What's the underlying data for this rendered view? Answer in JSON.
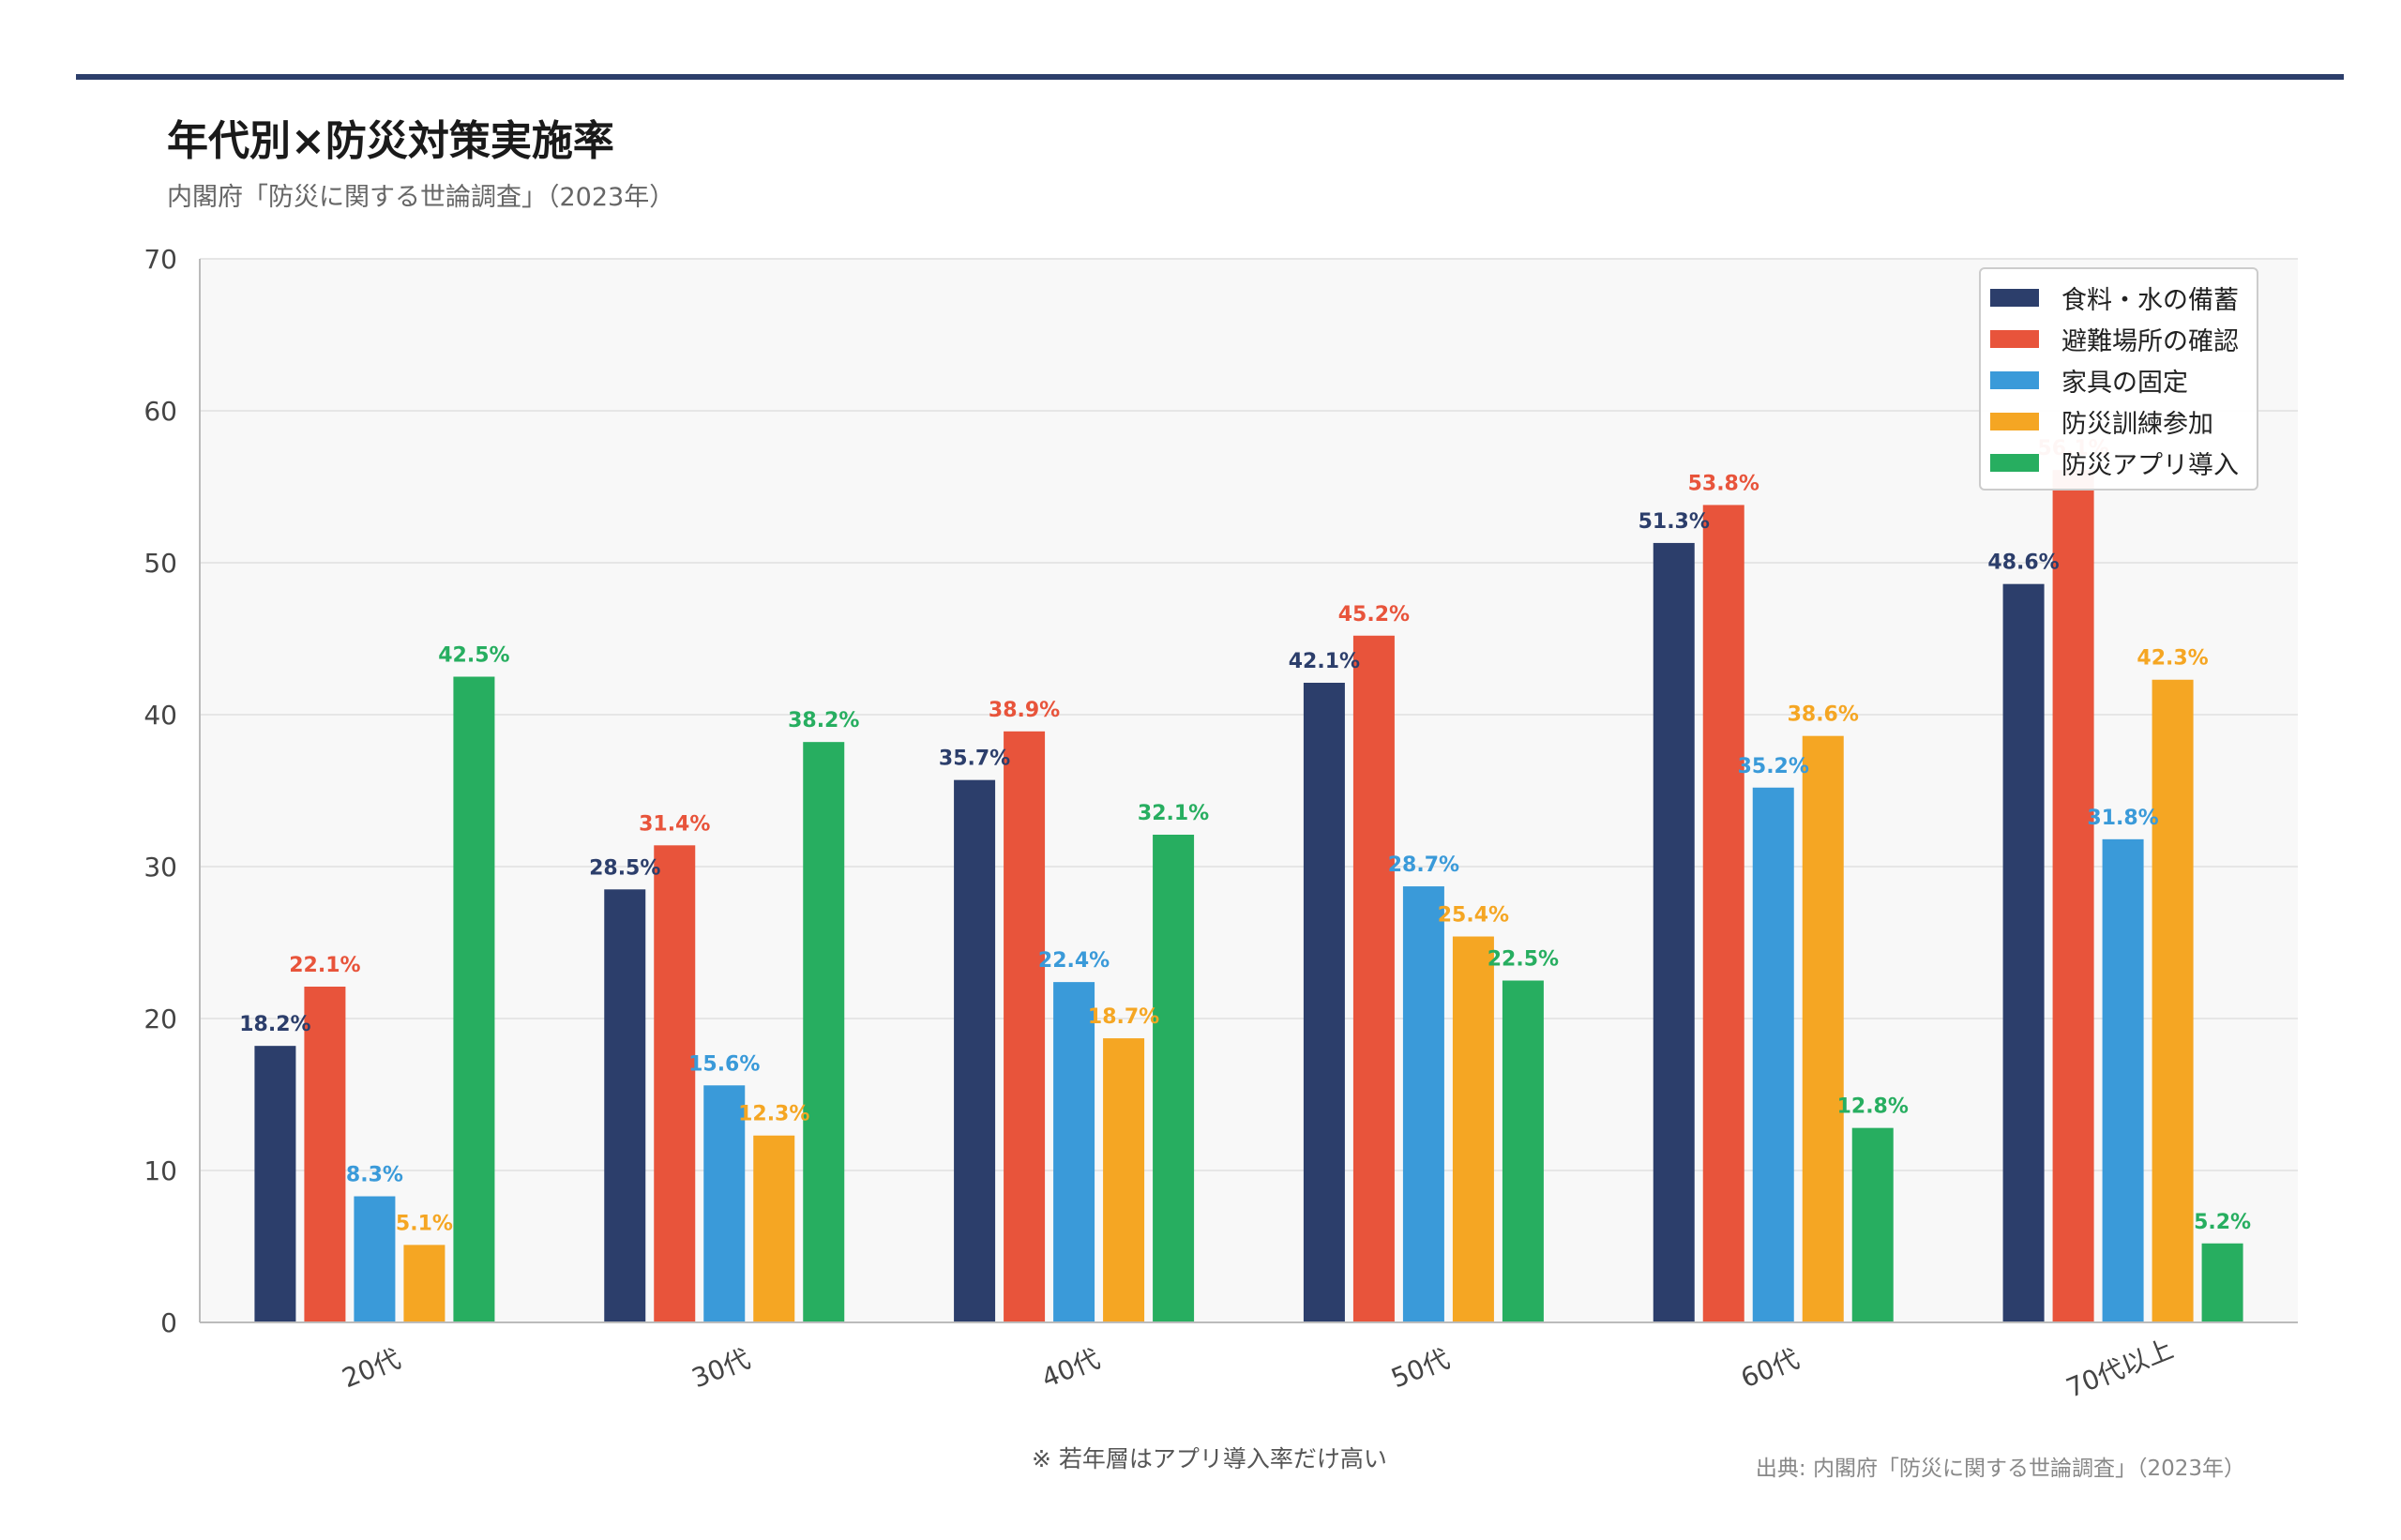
{
  "header": {
    "title": "年代別×防災対策実施率",
    "subtitle": "内閣府「防災に関する世論調査」（2023年）"
  },
  "colors": {
    "rule": "#2c3e6b",
    "plot_background": "#f8f8f8",
    "grid": "#e6e6e6",
    "axis": "#bbbbbb",
    "tick_text": "#444444"
  },
  "chart_data": {
    "type": "bar",
    "title": "年代別×防災対策実施率",
    "subtitle": "内閣府「防災に関する世論調査」（2023年）",
    "categories": [
      "20代",
      "30代",
      "40代",
      "50代",
      "60代",
      "70代以上"
    ],
    "series": [
      {
        "name": "食料・水の備蓄",
        "color": "#2c3e6b",
        "values": [
          18.2,
          28.5,
          35.7,
          42.1,
          51.3,
          48.6
        ]
      },
      {
        "name": "避難場所の確認",
        "color": "#e8543b",
        "values": [
          22.1,
          31.4,
          38.9,
          45.2,
          53.8,
          56.1
        ]
      },
      {
        "name": "家具の固定",
        "color": "#3a9ad9",
        "values": [
          8.3,
          15.6,
          22.4,
          28.7,
          35.2,
          31.8
        ]
      },
      {
        "name": "防災訓練参加",
        "color": "#f5a623",
        "values": [
          5.1,
          12.3,
          18.7,
          25.4,
          38.6,
          42.3
        ]
      },
      {
        "name": "防災アプリ導入",
        "color": "#27ae60",
        "values": [
          42.5,
          38.2,
          32.1,
          22.5,
          12.8,
          5.2
        ]
      }
    ],
    "value_suffix": "%",
    "ylim": [
      0,
      70
    ],
    "yticks": [
      0,
      10,
      20,
      30,
      40,
      50,
      60,
      70
    ],
    "xlabel": "",
    "ylabel": "",
    "grid": true,
    "legend_position": "top-right"
  },
  "footer": {
    "note": "※ 若年層はアプリ導入率だけ高い",
    "source": "出典: 内閣府「防災に関する世論調査」（2023年）"
  }
}
